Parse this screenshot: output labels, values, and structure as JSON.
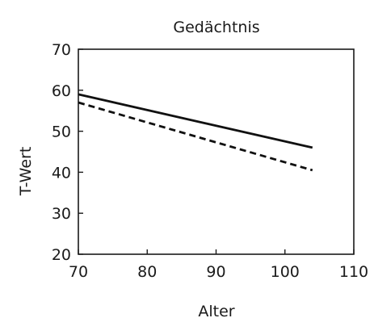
{
  "chart_data": {
    "type": "line",
    "title": "Gedächtnis",
    "xlabel": "Alter",
    "ylabel": "T-Wert",
    "xlim": [
      70,
      110
    ],
    "ylim": [
      20,
      70
    ],
    "x_ticks": [
      70,
      80,
      90,
      100,
      110
    ],
    "y_ticks": [
      20,
      30,
      40,
      50,
      60,
      70
    ],
    "x_tick_labels": [
      "70",
      "80",
      "90",
      "100",
      "110"
    ],
    "y_tick_labels": [
      "20",
      "30",
      "40",
      "50",
      "60",
      "70"
    ],
    "grid": false,
    "legend": "none",
    "series": [
      {
        "style": "solid",
        "color": "#111111",
        "x": [
          70,
          104
        ],
        "y": [
          59,
          46
        ]
      },
      {
        "style": "dashed",
        "color": "#111111",
        "x": [
          70,
          104
        ],
        "y": [
          57,
          40.5
        ]
      }
    ]
  }
}
